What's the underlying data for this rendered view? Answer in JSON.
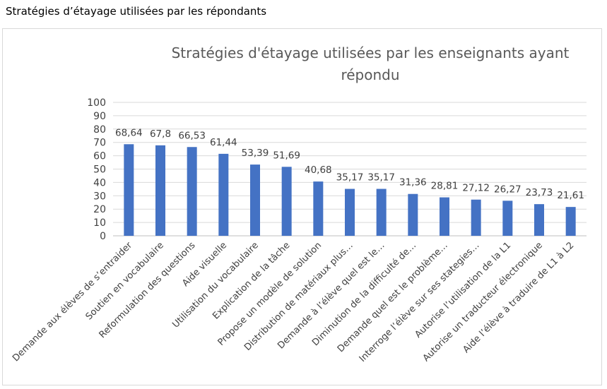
{
  "page": {
    "caption": "Stratégies d’étayage utilisées par les répondants"
  },
  "chart_data": {
    "type": "bar",
    "title": [
      "Stratégies d'étayage utilisées par les enseignants ayant",
      "répondu"
    ],
    "xlabel": "",
    "ylabel": "",
    "ylim": [
      0,
      100
    ],
    "yticks": [
      0,
      10,
      20,
      30,
      40,
      50,
      60,
      70,
      80,
      90,
      100
    ],
    "grid": true,
    "legend": "none",
    "bar_color": "#4472c4",
    "categories": [
      "Demande aux élèves de s’entraider",
      "Soutien en vocabulaire",
      "Reformulation des questions",
      "Aide visuelle",
      "Utilisation du vocabulaire",
      "Explication de la tâche",
      "Propose un modèle de solution",
      "Distribution de matériaux plus…",
      "Demande à l’élève quel est le…",
      "Diminution de la difficulté de…",
      "Demande quel est le problème…",
      "Interroge l’élève sur ses stategies…",
      "Autorise l’utilisation de la L1",
      "Autorise un traducteur électronique",
      "Aide l’élève à traduire de L1 à L2"
    ],
    "values": [
      68.64,
      67.8,
      66.53,
      61.44,
      53.39,
      51.69,
      40.68,
      35.17,
      35.17,
      31.36,
      28.81,
      27.12,
      26.27,
      23.73,
      21.61
    ],
    "data_labels": [
      "68,64",
      "67,8",
      "66,53",
      "61,44",
      "53,39",
      "51,69",
      "40,68",
      "35,17",
      "35,17",
      "31,36",
      "28,81",
      "27,12",
      "26,27",
      "23,73",
      "21,61"
    ]
  }
}
